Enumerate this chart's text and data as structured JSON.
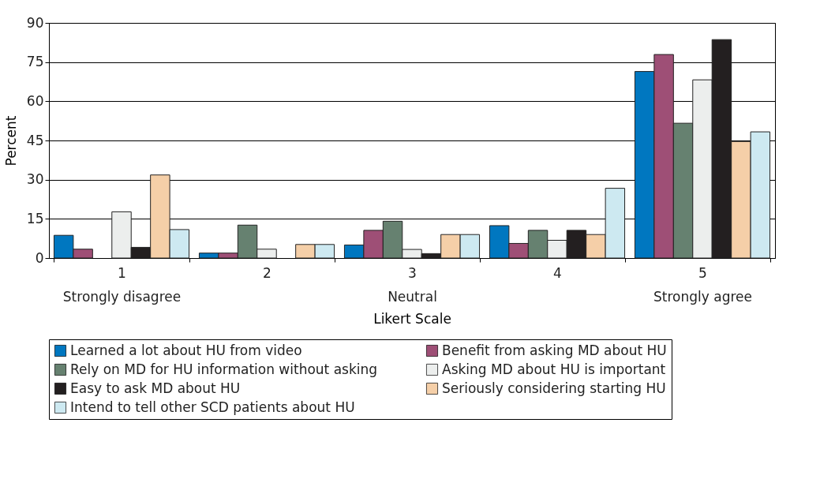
{
  "chart_data": {
    "type": "bar",
    "xlabel": "Likert Scale",
    "ylabel": "Percent",
    "categories": [
      "1\nStrongly disagree",
      "2",
      "3\nNeutral",
      "4",
      "5\nStrongly agree"
    ],
    "ylim": [
      0,
      90
    ],
    "yticks": [
      0,
      15,
      30,
      45,
      60,
      75,
      90
    ],
    "grid": "y",
    "legend": "bottom",
    "series": [
      {
        "name": "Learned a lot about HU from video",
        "color": "#0077c0",
        "values": [
          8.7,
          1.9,
          5.0,
          12.4,
          71.4
        ]
      },
      {
        "name": "Benefit from asking MD about HU",
        "color": "#9e4f76",
        "values": [
          3.4,
          1.9,
          10.6,
          5.6,
          77.9
        ]
      },
      {
        "name": "Rely on MD for HU information without asking",
        "color": "#668170",
        "values": [
          null,
          12.6,
          14.1,
          10.6,
          51.6
        ]
      },
      {
        "name": "Asking MD about HU is important",
        "color": "#eceeed",
        "values": [
          17.7,
          3.4,
          3.3,
          6.8,
          68.2
        ]
      },
      {
        "name": "Easy to ask MD about HU",
        "color": "#231f20",
        "values": [
          4.1,
          null,
          1.7,
          10.6,
          83.6
        ]
      },
      {
        "name": "Seriously considering starting HU",
        "color": "#f5cfa8",
        "values": [
          31.8,
          5.2,
          9.0,
          9.0,
          44.6
        ]
      },
      {
        "name": "Intend to tell other SCD patients about HU",
        "color": "#cde9f1",
        "values": [
          10.9,
          5.2,
          9.0,
          26.7,
          48.3
        ]
      }
    ]
  }
}
